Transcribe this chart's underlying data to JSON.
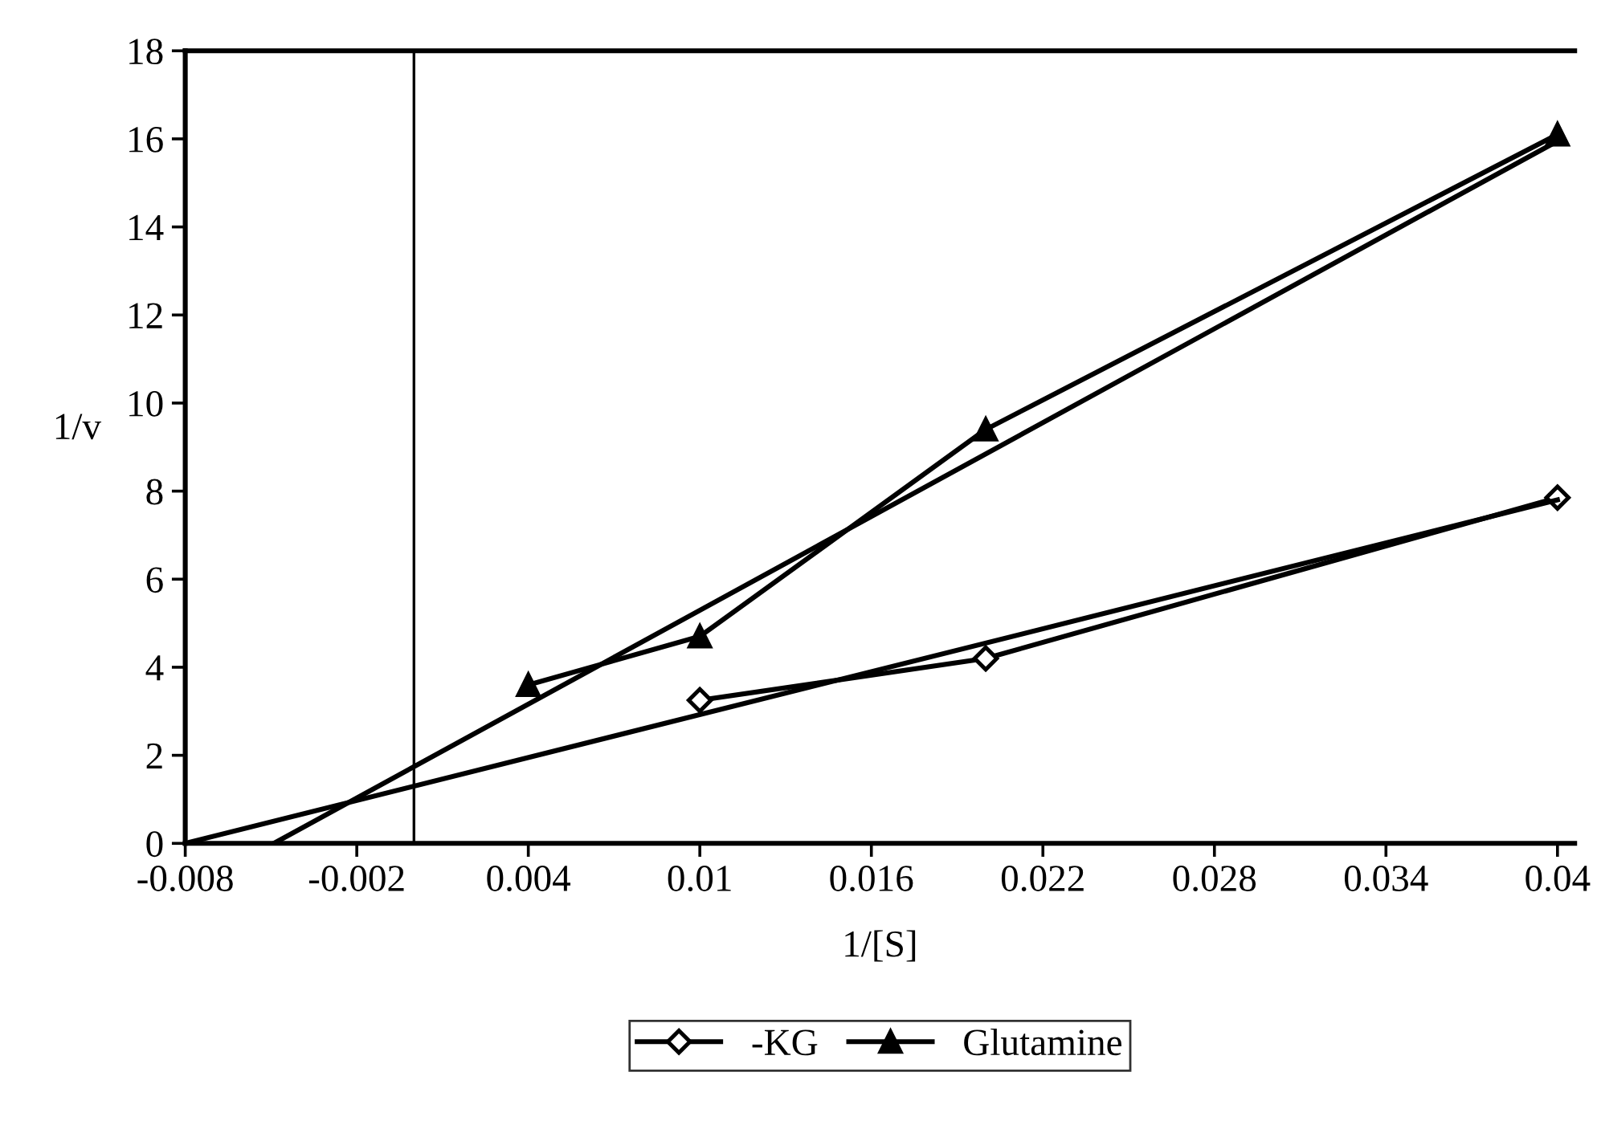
{
  "chart_data": {
    "type": "line",
    "xlabel": "1/[S]",
    "ylabel": "1/v",
    "series": [
      {
        "name": "-KG",
        "color": "#000000",
        "marker": "diamond",
        "x": [
          0.01,
          0.02,
          0.04
        ],
        "values": [
          3.25,
          4.2,
          7.85
        ]
      },
      {
        "name": "Glutamine",
        "color": "#000000",
        "marker": "triangle",
        "x": [
          0.004,
          0.01,
          0.02,
          0.04
        ],
        "values": [
          3.6,
          4.7,
          9.4,
          16.1
        ]
      },
      {
        "color": "#000000",
        "marker": "none",
        "x": [
          -0.008,
          0.04
        ],
        "values": [
          0,
          7.8
        ]
      },
      {
        "color": "#000000",
        "marker": "none",
        "x": [
          -0.0049,
          0.04
        ],
        "values": [
          0,
          15.95
        ]
      }
    ],
    "xlim": [
      -0.008,
      0.0406
    ],
    "ylim": [
      0,
      18
    ],
    "xticks": [
      -0.008,
      -0.002,
      0.004,
      0.01,
      0.016,
      0.022,
      0.028,
      0.034,
      0.04
    ],
    "yticks": [
      0,
      2,
      4,
      6,
      8,
      10,
      12,
      14,
      16,
      18
    ],
    "ref_lines": [
      {
        "axis": "x",
        "value": 0,
        "color": "#000000"
      }
    ],
    "grid": false,
    "legend": "bottom",
    "line_style": "solid"
  }
}
